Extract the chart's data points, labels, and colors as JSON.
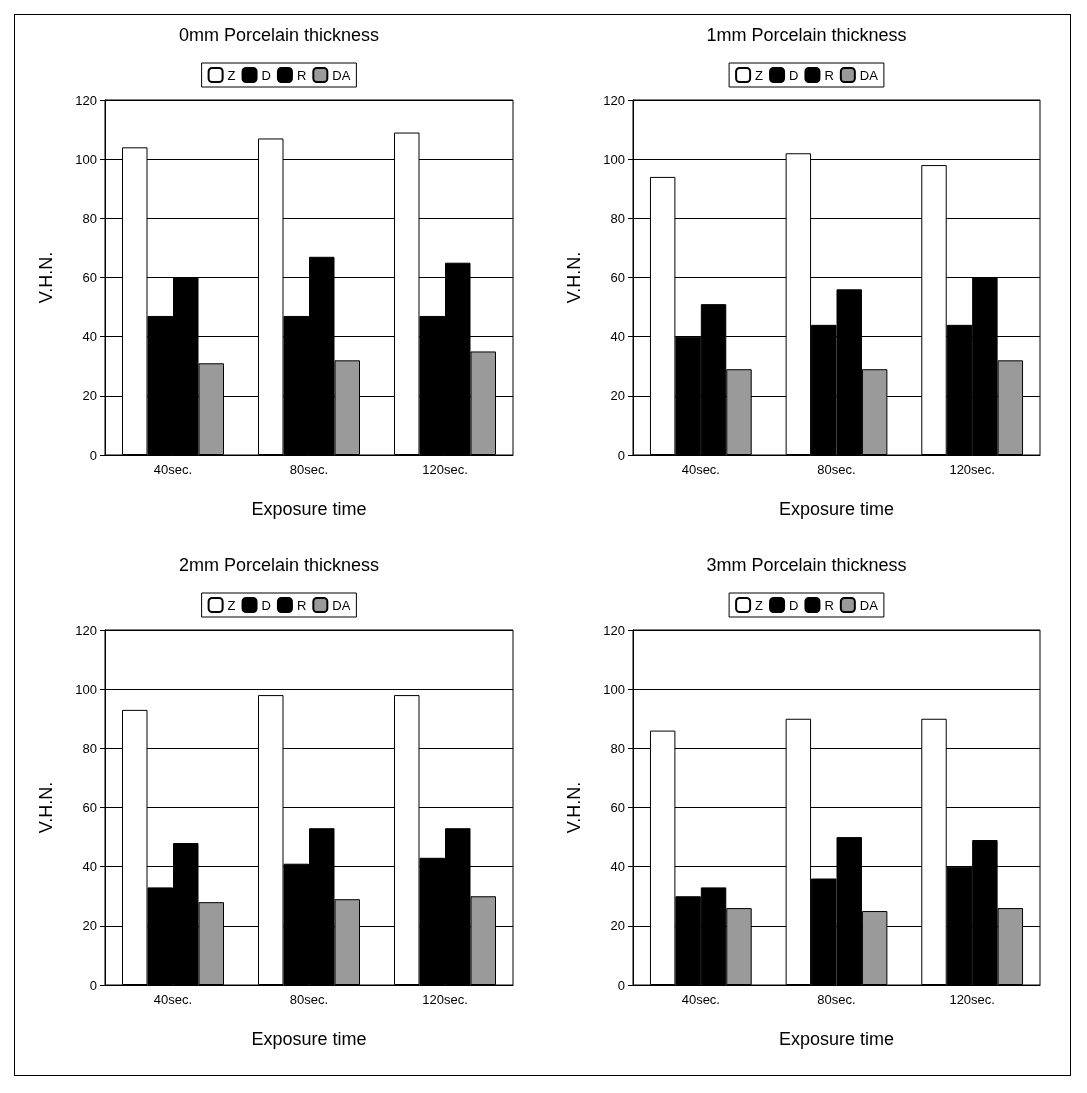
{
  "chart_data": [
    {
      "type": "bar",
      "title": "0mm Porcelain thickness",
      "xlabel": "Exposure time",
      "ylabel": "V.H.N.",
      "categories": [
        "40sec.",
        "80sec.",
        "120sec."
      ],
      "series": [
        {
          "name": "Z",
          "color": "#ffffff",
          "values": [
            104,
            107,
            109
          ]
        },
        {
          "name": "D",
          "color": "#000000",
          "values": [
            47,
            47,
            47
          ]
        },
        {
          "name": "R",
          "color": "#000000",
          "values": [
            60,
            67,
            65
          ]
        },
        {
          "name": "DA",
          "color": "#9a9a9a",
          "values": [
            31,
            32,
            35
          ]
        }
      ],
      "ylim": [
        0,
        120
      ],
      "yticks": [
        0,
        20,
        40,
        60,
        80,
        100,
        120
      ],
      "grid": "y",
      "legend": "top"
    },
    {
      "type": "bar",
      "title": "1mm Porcelain thickness",
      "xlabel": "Exposure time",
      "ylabel": "V.H.N.",
      "categories": [
        "40sec.",
        "80sec.",
        "120sec."
      ],
      "series": [
        {
          "name": "Z",
          "color": "#ffffff",
          "values": [
            94,
            102,
            98
          ]
        },
        {
          "name": "D",
          "color": "#000000",
          "values": [
            40,
            44,
            44
          ]
        },
        {
          "name": "R",
          "color": "#000000",
          "values": [
            51,
            56,
            60
          ]
        },
        {
          "name": "DA",
          "color": "#9a9a9a",
          "values": [
            29,
            29,
            32
          ]
        }
      ],
      "ylim": [
        0,
        120
      ],
      "yticks": [
        0,
        20,
        40,
        60,
        80,
        100,
        120
      ],
      "grid": "y",
      "legend": "top"
    },
    {
      "type": "bar",
      "title": "2mm Porcelain thickness",
      "xlabel": "Exposure time",
      "ylabel": "V.H.N.",
      "categories": [
        "40sec.",
        "80sec.",
        "120sec."
      ],
      "series": [
        {
          "name": "Z",
          "color": "#ffffff",
          "values": [
            93,
            98,
            98
          ]
        },
        {
          "name": "D",
          "color": "#000000",
          "values": [
            33,
            41,
            43
          ]
        },
        {
          "name": "R",
          "color": "#000000",
          "values": [
            48,
            53,
            53
          ]
        },
        {
          "name": "DA",
          "color": "#9a9a9a",
          "values": [
            28,
            29,
            30
          ]
        }
      ],
      "ylim": [
        0,
        120
      ],
      "yticks": [
        0,
        20,
        40,
        60,
        80,
        100,
        120
      ],
      "grid": "y",
      "legend": "top"
    },
    {
      "type": "bar",
      "title": "3mm Porcelain thickness",
      "xlabel": "Exposure time",
      "ylabel": "V.H.N.",
      "categories": [
        "40sec.",
        "80sec.",
        "120sec."
      ],
      "series": [
        {
          "name": "Z",
          "color": "#ffffff",
          "values": [
            86,
            90,
            90
          ]
        },
        {
          "name": "D",
          "color": "#000000",
          "values": [
            30,
            36,
            40
          ]
        },
        {
          "name": "R",
          "color": "#000000",
          "values": [
            33,
            50,
            49
          ]
        },
        {
          "name": "DA",
          "color": "#9a9a9a",
          "values": [
            26,
            25,
            26
          ]
        }
      ],
      "ylim": [
        0,
        120
      ],
      "yticks": [
        0,
        20,
        40,
        60,
        80,
        100,
        120
      ],
      "grid": "y",
      "legend": "top"
    }
  ]
}
